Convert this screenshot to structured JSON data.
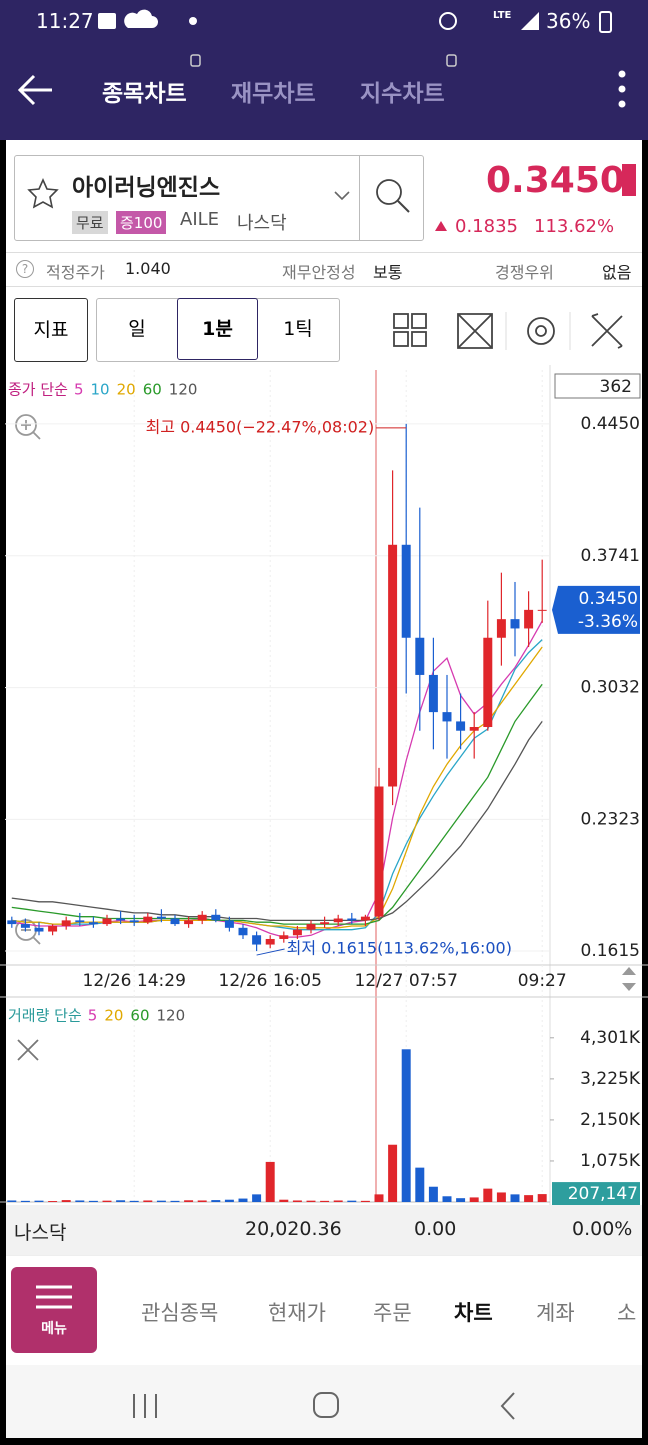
{
  "status_bar": {
    "time": "11:27",
    "network": "LTE",
    "battery": "36%"
  },
  "header": {
    "tabs": [
      "종목차트",
      "재무차트",
      "지수차트"
    ]
  },
  "stock": {
    "name": "아이러닝엔진스",
    "tags": [
      "무료",
      "증100"
    ],
    "ticker": "AILE",
    "market": "나스닥",
    "price": "0.3450",
    "change": "0.1835",
    "change_pct": "113.62%"
  },
  "info_bar": {
    "items": [
      {
        "label": "적정주가",
        "value": "1.040"
      },
      {
        "label": "재무안정성",
        "value": "보통"
      },
      {
        "label": "경쟁우위",
        "value": "없음"
      }
    ]
  },
  "toolbar": {
    "indicator": "지표",
    "periods": [
      "일",
      "1분",
      "1틱"
    ]
  },
  "chart_data": [
    {
      "type": "candlestick",
      "legend_title": "종가 단순",
      "counter": "362",
      "high_label": "최고 0.4450(−22.47%,08:02)",
      "low_label": "최저 0.1615(113.62%,16:00)",
      "tag_price": "0.3450",
      "tag_change": "-3.36%",
      "up_color": "#e0262b",
      "down_color": "#1a5fd0",
      "categories": [
        null,
        null,
        null,
        null,
        null,
        null,
        null,
        null,
        null,
        "12/26 14:29",
        null,
        null,
        null,
        null,
        null,
        null,
        null,
        null,
        null,
        "12/26 16:05",
        null,
        null,
        null,
        null,
        null,
        null,
        null,
        null,
        null,
        "12/27 07:57",
        null,
        null,
        null,
        null,
        null,
        null,
        null,
        null,
        null,
        "09:27"
      ],
      "open": [
        0.178,
        0.176,
        0.174,
        0.172,
        0.175,
        0.178,
        0.177,
        0.176,
        0.179,
        0.178,
        0.177,
        0.18,
        0.179,
        0.176,
        0.178,
        0.181,
        0.178,
        0.174,
        0.17,
        0.165,
        0.168,
        0.17,
        0.173,
        0.176,
        0.177,
        0.179,
        0.178,
        0.18,
        0.25,
        0.38,
        0.33,
        0.31,
        0.29,
        0.285,
        0.28,
        0.282,
        0.33,
        0.34,
        0.335,
        0.345
      ],
      "high": [
        0.18,
        0.179,
        0.177,
        0.176,
        0.18,
        0.182,
        0.18,
        0.181,
        0.183,
        0.181,
        0.182,
        0.184,
        0.181,
        0.18,
        0.183,
        0.184,
        0.18,
        0.176,
        0.172,
        0.17,
        0.172,
        0.175,
        0.178,
        0.18,
        0.181,
        0.182,
        0.181,
        0.26,
        0.42,
        0.445,
        0.4,
        0.33,
        0.31,
        0.3,
        0.29,
        0.35,
        0.365,
        0.36,
        0.355,
        0.372
      ],
      "low": [
        0.174,
        0.172,
        0.17,
        0.17,
        0.173,
        0.175,
        0.174,
        0.175,
        0.176,
        0.175,
        0.176,
        0.177,
        0.175,
        0.174,
        0.176,
        0.177,
        0.172,
        0.168,
        0.1615,
        0.163,
        0.166,
        0.168,
        0.171,
        0.174,
        0.175,
        0.176,
        0.175,
        0.178,
        0.24,
        0.3,
        0.28,
        0.27,
        0.265,
        0.27,
        0.265,
        0.28,
        0.315,
        0.32,
        0.325,
        0.338
      ],
      "close": [
        0.176,
        0.174,
        0.172,
        0.175,
        0.178,
        0.177,
        0.176,
        0.179,
        0.178,
        0.177,
        0.18,
        0.179,
        0.176,
        0.178,
        0.181,
        0.178,
        0.174,
        0.17,
        0.165,
        0.168,
        0.17,
        0.173,
        0.176,
        0.177,
        0.179,
        0.178,
        0.18,
        0.25,
        0.38,
        0.33,
        0.31,
        0.29,
        0.285,
        0.28,
        0.282,
        0.33,
        0.34,
        0.335,
        0.345,
        0.345
      ],
      "series": [
        {
          "name": "5",
          "color": "#d63bb0",
          "values": [
            0.177,
            0.176,
            0.175,
            0.175,
            0.175,
            0.175,
            0.176,
            0.177,
            0.178,
            0.177,
            0.178,
            0.178,
            0.178,
            0.178,
            0.179,
            0.178,
            0.177,
            0.176,
            0.174,
            0.171,
            0.169,
            0.169,
            0.17,
            0.173,
            0.175,
            0.177,
            0.178,
            0.193,
            0.233,
            0.264,
            0.29,
            0.312,
            0.319,
            0.299,
            0.289,
            0.295,
            0.305,
            0.314,
            0.326,
            0.339
          ]
        },
        {
          "name": "10",
          "color": "#2aa6c8",
          "values": [
            0.178,
            0.177,
            0.177,
            0.176,
            0.176,
            0.176,
            0.176,
            0.177,
            0.177,
            0.177,
            0.177,
            0.178,
            0.178,
            0.178,
            0.178,
            0.178,
            0.178,
            0.177,
            0.176,
            0.175,
            0.174,
            0.173,
            0.173,
            0.173,
            0.173,
            0.173,
            0.174,
            0.182,
            0.203,
            0.219,
            0.233,
            0.245,
            0.256,
            0.266,
            0.276,
            0.281,
            0.297,
            0.313,
            0.322,
            0.329
          ]
        },
        {
          "name": "20",
          "color": "#e0a800",
          "values": [
            0.178,
            0.177,
            0.177,
            0.176,
            0.176,
            0.177,
            0.177,
            0.177,
            0.177,
            0.177,
            0.177,
            0.178,
            0.178,
            0.178,
            0.178,
            0.178,
            0.178,
            0.177,
            0.176,
            0.175,
            0.175,
            0.174,
            0.174,
            0.174,
            0.174,
            0.175,
            0.175,
            0.18,
            0.195,
            0.215,
            0.235,
            0.25,
            0.262,
            0.272,
            0.28,
            0.285,
            0.295,
            0.305,
            0.315,
            0.325
          ]
        },
        {
          "name": "60",
          "color": "#2a9a2a",
          "values": [
            0.185,
            0.184,
            0.183,
            0.182,
            0.181,
            0.18,
            0.18,
            0.179,
            0.179,
            0.179,
            0.179,
            0.179,
            0.179,
            0.179,
            0.179,
            0.178,
            0.178,
            0.178,
            0.177,
            0.177,
            0.176,
            0.176,
            0.176,
            0.176,
            0.176,
            0.176,
            0.176,
            0.178,
            0.185,
            0.195,
            0.205,
            0.215,
            0.225,
            0.235,
            0.245,
            0.255,
            0.27,
            0.285,
            0.295,
            0.305
          ]
        },
        {
          "name": "120",
          "color": "#555555",
          "values": [
            0.19,
            0.189,
            0.188,
            0.188,
            0.187,
            0.186,
            0.185,
            0.184,
            0.183,
            0.182,
            0.182,
            0.181,
            0.181,
            0.18,
            0.18,
            0.18,
            0.179,
            0.179,
            0.179,
            0.178,
            0.178,
            0.178,
            0.178,
            0.178,
            0.178,
            0.178,
            0.178,
            0.179,
            0.182,
            0.188,
            0.195,
            0.202,
            0.21,
            0.218,
            0.228,
            0.238,
            0.25,
            0.262,
            0.275,
            0.285
          ]
        }
      ],
      "ylim": [
        0.154,
        0.474
      ],
      "yticks": [
        {
          "value": 0.445,
          "label": "0.4450"
        },
        0.3741,
        0.3032,
        0.2323,
        0.1615
      ],
      "grid": true
    },
    {
      "type": "bar",
      "legend_title": "거래량 단순",
      "ma_legend": [
        {
          "name": "5",
          "color": "#d63bb0"
        },
        {
          "name": "20",
          "color": "#e0a800"
        },
        {
          "name": "60",
          "color": "#2a9a2a"
        },
        {
          "name": "120",
          "color": "#555555"
        }
      ],
      "values": [
        40,
        30,
        35,
        25,
        50,
        40,
        30,
        35,
        45,
        30,
        40,
        35,
        30,
        45,
        40,
        50,
        60,
        90,
        200,
        1050,
        60,
        40,
        35,
        30,
        40,
        35,
        30,
        200,
        1500,
        4000,
        900,
        400,
        150,
        100,
        120,
        350,
        250,
        200,
        180,
        207.147
      ],
      "value_labels": [
        null,
        null,
        null,
        null,
        null,
        null,
        null,
        null,
        null,
        null,
        null,
        null,
        null,
        null,
        null,
        null,
        null,
        null,
        null,
        null,
        null,
        null,
        null,
        null,
        null,
        null,
        null,
        null,
        null,
        null,
        null,
        null,
        null,
        null,
        null,
        null,
        null,
        null,
        null,
        "207,147"
      ],
      "ylim": [
        0,
        5160
      ],
      "yticks": [
        {
          "value": 4301,
          "label": "4,301K"
        },
        {
          "value": 3225,
          "label": "3,225K"
        },
        {
          "value": 2150,
          "label": "2,150K"
        },
        {
          "value": 1075,
          "label": "1,075K"
        }
      ]
    }
  ],
  "index_bar": {
    "name": "나스닥",
    "value": "20,020.36",
    "change": "0.00",
    "change_pct": "0.00%"
  },
  "bottom_nav": {
    "menu": "메뉴",
    "items": [
      "관심종목",
      "현재가",
      "주문",
      "차트",
      "계좌",
      "소"
    ]
  }
}
